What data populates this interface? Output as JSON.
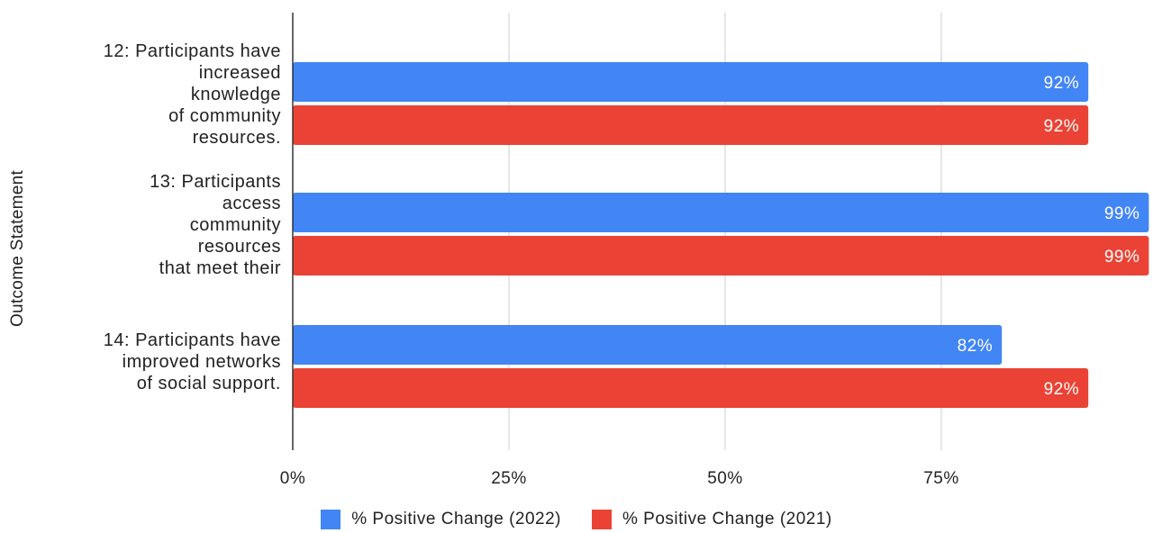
{
  "chart_data": {
    "type": "bar",
    "orientation": "horizontal",
    "categories": [
      "12: Participants have\nincreased\nknowledge\nof community\nresources.",
      "13: Participants\naccess\ncommunity\nresources\nthat meet their",
      "14: Participants have\nimproved networks\nof social support."
    ],
    "series": [
      {
        "name": "% Positive Change (2022)",
        "color": "#4285F4",
        "values": [
          92,
          99,
          82
        ]
      },
      {
        "name": "% Positive Change (2021)",
        "color": "#EA4335",
        "values": [
          92,
          99,
          92
        ]
      }
    ],
    "data_labels": [
      [
        "92%",
        "99%",
        "82%"
      ],
      [
        "92%",
        "99%",
        "92%"
      ]
    ],
    "x_ticks": [
      "0%",
      "25%",
      "50%",
      "75%"
    ],
    "xlim": [
      0,
      100
    ],
    "ylabel": "Outcome Statement",
    "xlabel": "",
    "grid": true,
    "legend_position": "bottom"
  }
}
